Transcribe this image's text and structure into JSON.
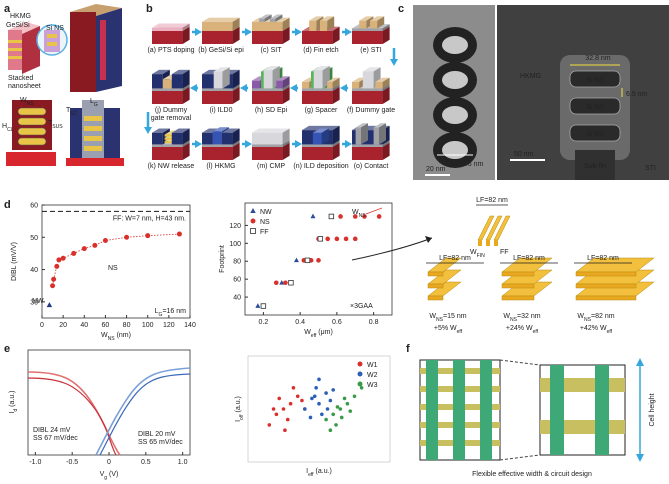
{
  "panel_labels": [
    "a",
    "b",
    "c",
    "d",
    "e",
    "f"
  ],
  "panel_a": {
    "hkmg": "HKMG",
    "gesi_si": "GeSi/Si",
    "si_ns": "Si NS",
    "stacked": {
      "lines": [
        "Stacked",
        "nanosheet"
      ]
    },
    "w_ns": [
      "W",
      "NS"
    ],
    "h_cl": [
      "H",
      "CL"
    ],
    "t_sus": [
      "T",
      "SUS"
    ],
    "l_g": [
      "L",
      "G"
    ],
    "t_sc": [
      "T",
      "SC"
    ]
  },
  "panel_b": {
    "steps": [
      "(a) PTS doping",
      "(b) GeSi/Si epi",
      "(c) SIT",
      "(d) Fin etch",
      "(e) STI",
      "(f) Dummy gate",
      "(g) Spacer",
      "(h) SD Epi",
      "(i) ILD0",
      {
        "lines": [
          "(j) Dummy",
          "gate removal"
        ]
      },
      "(k) NW release",
      "(l) HKMG",
      "(m) CMP",
      "(n) ILD deposition",
      "(o) Contact"
    ]
  },
  "panel_c": {
    "hkmg": "HKMG",
    "width": "32.8 nm",
    "si_ns": [
      "Si NS",
      "Si NS",
      "Si NS"
    ],
    "gap": "6.5 nm",
    "scale_right": "50 nm",
    "sub_fin": "Sub-fin",
    "sti": "STI",
    "scale_left": "20 nm",
    "diameter": "13.6 nm"
  },
  "panel_d": {
    "dibl_chart": {
      "type": "scatter",
      "ylabel": "DIBL (mV/V)",
      "xlabel": [
        "W",
        "NS",
        " (nm)"
      ],
      "xlim": [
        0,
        140
      ],
      "ylim": [
        25,
        60
      ],
      "xticks": [
        0,
        20,
        40,
        60,
        80,
        100,
        120,
        140
      ],
      "yticks": [
        30,
        40,
        50,
        60
      ],
      "series": [
        {
          "name": "NS",
          "color": "#d9302c",
          "marker": "circle",
          "line_style": "dotted",
          "x": [
            10,
            11,
            14,
            16,
            20,
            30,
            40,
            50,
            60,
            80,
            100,
            130
          ],
          "values": [
            35,
            37,
            41,
            43,
            43.5,
            45,
            46.5,
            47.5,
            49,
            50,
            50.5,
            51
          ]
        },
        {
          "name": "NW",
          "color": "#1f3a7a",
          "marker": "triangle",
          "x": [
            7
          ],
          "values": [
            29
          ]
        }
      ],
      "reference": {
        "value": 58,
        "label": "FF: W=7 nm, H=43 nm."
      },
      "annotation": [
        "L",
        "G",
        "=16 nm"
      ]
    },
    "footprint_chart": {
      "type": "scatter",
      "ylabel": "Footprint",
      "xlabel": [
        "W",
        "eff",
        " (μm)"
      ],
      "xlim": [
        0.1,
        0.9
      ],
      "ylim": [
        20,
        145
      ],
      "xticks": [
        0.2,
        0.4,
        0.6,
        0.8
      ],
      "yticks": [
        40,
        60,
        80,
        100,
        120
      ],
      "legend": "upper left",
      "series": [
        {
          "name": "NW",
          "color": "#2b4d9c",
          "marker": "triangle",
          "x": [
            0.17,
            0.3,
            0.38,
            0.47
          ],
          "values": [
            30,
            56,
            81,
            130
          ]
        },
        {
          "name": "NS",
          "color": "#d9302c",
          "marker": "circle",
          "x": [
            0.27,
            0.32,
            0.42,
            0.46,
            0.5,
            0.5,
            0.55,
            0.6,
            0.65,
            0.7,
            0.62,
            0.7,
            0.75,
            0.83
          ],
          "values": [
            56,
            56,
            81,
            81,
            81,
            105,
            105,
            105,
            105,
            105,
            130,
            130,
            130,
            130
          ]
        },
        {
          "name": "FF",
          "color": "#333333",
          "marker": "square-open",
          "x": [
            0.2,
            0.35,
            0.44,
            0.51,
            0.57
          ],
          "values": [
            30,
            56,
            81,
            105,
            130
          ]
        }
      ],
      "note": "×3GAA",
      "w_ns": [
        "W",
        "NS"
      ]
    },
    "illustrations": {
      "lf": [
        "LF=82 nm",
        "LF=82 nm",
        "LF=82 nm",
        "LF=82 nm"
      ],
      "w_fin": [
        "W",
        "FIN"
      ],
      "ff": "FF",
      "variants": [
        {
          "w": [
            "W",
            "NS",
            "=15 nm"
          ],
          "gain": [
            "+5% W",
            "eff"
          ]
        },
        {
          "w": [
            "W",
            "NS",
            "=32 nm"
          ],
          "gain": [
            "+24% W",
            "eff"
          ]
        },
        {
          "w": [
            "W",
            "NS",
            "=82 nm"
          ],
          "gain": [
            "+42% W",
            "eff"
          ]
        }
      ]
    }
  },
  "panel_e": {
    "id_chart": {
      "ylabel": [
        "I",
        "d",
        " (a.u.)"
      ],
      "xlabel": [
        "V",
        "g",
        " (V)"
      ],
      "xlim": [
        -1.1,
        1.1
      ],
      "xticks": [
        {
          "value": -1,
          "label": "-1.0"
        },
        -0.5,
        0,
        0.5,
        {
          "value": 1,
          "label": "1.0"
        }
      ],
      "left_note": {
        "lines": [
          "DIBL 24 mV",
          "SS 67 mV/dec"
        ]
      },
      "right_note": {
        "lines": [
          "DIBL 20 mV",
          "SS 65 mV/dec"
        ]
      }
    },
    "scatter": {
      "type": "scatter",
      "xlabel": [
        "I",
        "eff",
        " (a.u.)"
      ],
      "ylabel": [
        "I",
        "off",
        " (a.u.)"
      ],
      "xlim": [
        0,
        1
      ],
      "ylim": [
        0,
        1
      ],
      "legend": "upper right",
      "series": [
        {
          "name": "W1",
          "color": "#d9302c",
          "marker": "circle",
          "x": [
            0.15,
            0.2,
            0.25,
            0.3,
            0.22,
            0.35,
            0.28,
            0.4,
            0.18,
            0.32,
            0.38,
            0.26
          ],
          "values": [
            0.35,
            0.45,
            0.5,
            0.55,
            0.6,
            0.62,
            0.4,
            0.5,
            0.5,
            0.7,
            0.58,
            0.3
          ]
        },
        {
          "name": "W2",
          "color": "#2b5fb8",
          "marker": "circle",
          "x": [
            0.4,
            0.45,
            0.5,
            0.55,
            0.48,
            0.52,
            0.58,
            0.44,
            0.6,
            0.5,
            0.56,
            0.47
          ],
          "values": [
            0.5,
            0.6,
            0.55,
            0.65,
            0.7,
            0.45,
            0.58,
            0.42,
            0.68,
            0.78,
            0.5,
            0.62
          ]
        },
        {
          "name": "W3",
          "color": "#3a9a4a",
          "marker": "circle",
          "x": [
            0.55,
            0.6,
            0.65,
            0.7,
            0.62,
            0.68,
            0.75,
            0.58,
            0.72,
            0.66,
            0.8,
            0.63
          ],
          "values": [
            0.4,
            0.45,
            0.5,
            0.55,
            0.35,
            0.6,
            0.62,
            0.3,
            0.48,
            0.42,
            0.7,
            0.52
          ]
        }
      ]
    }
  },
  "panel_f": {
    "cell_height": "Cell height",
    "caption": "Flexible effective width & circuit design"
  }
}
